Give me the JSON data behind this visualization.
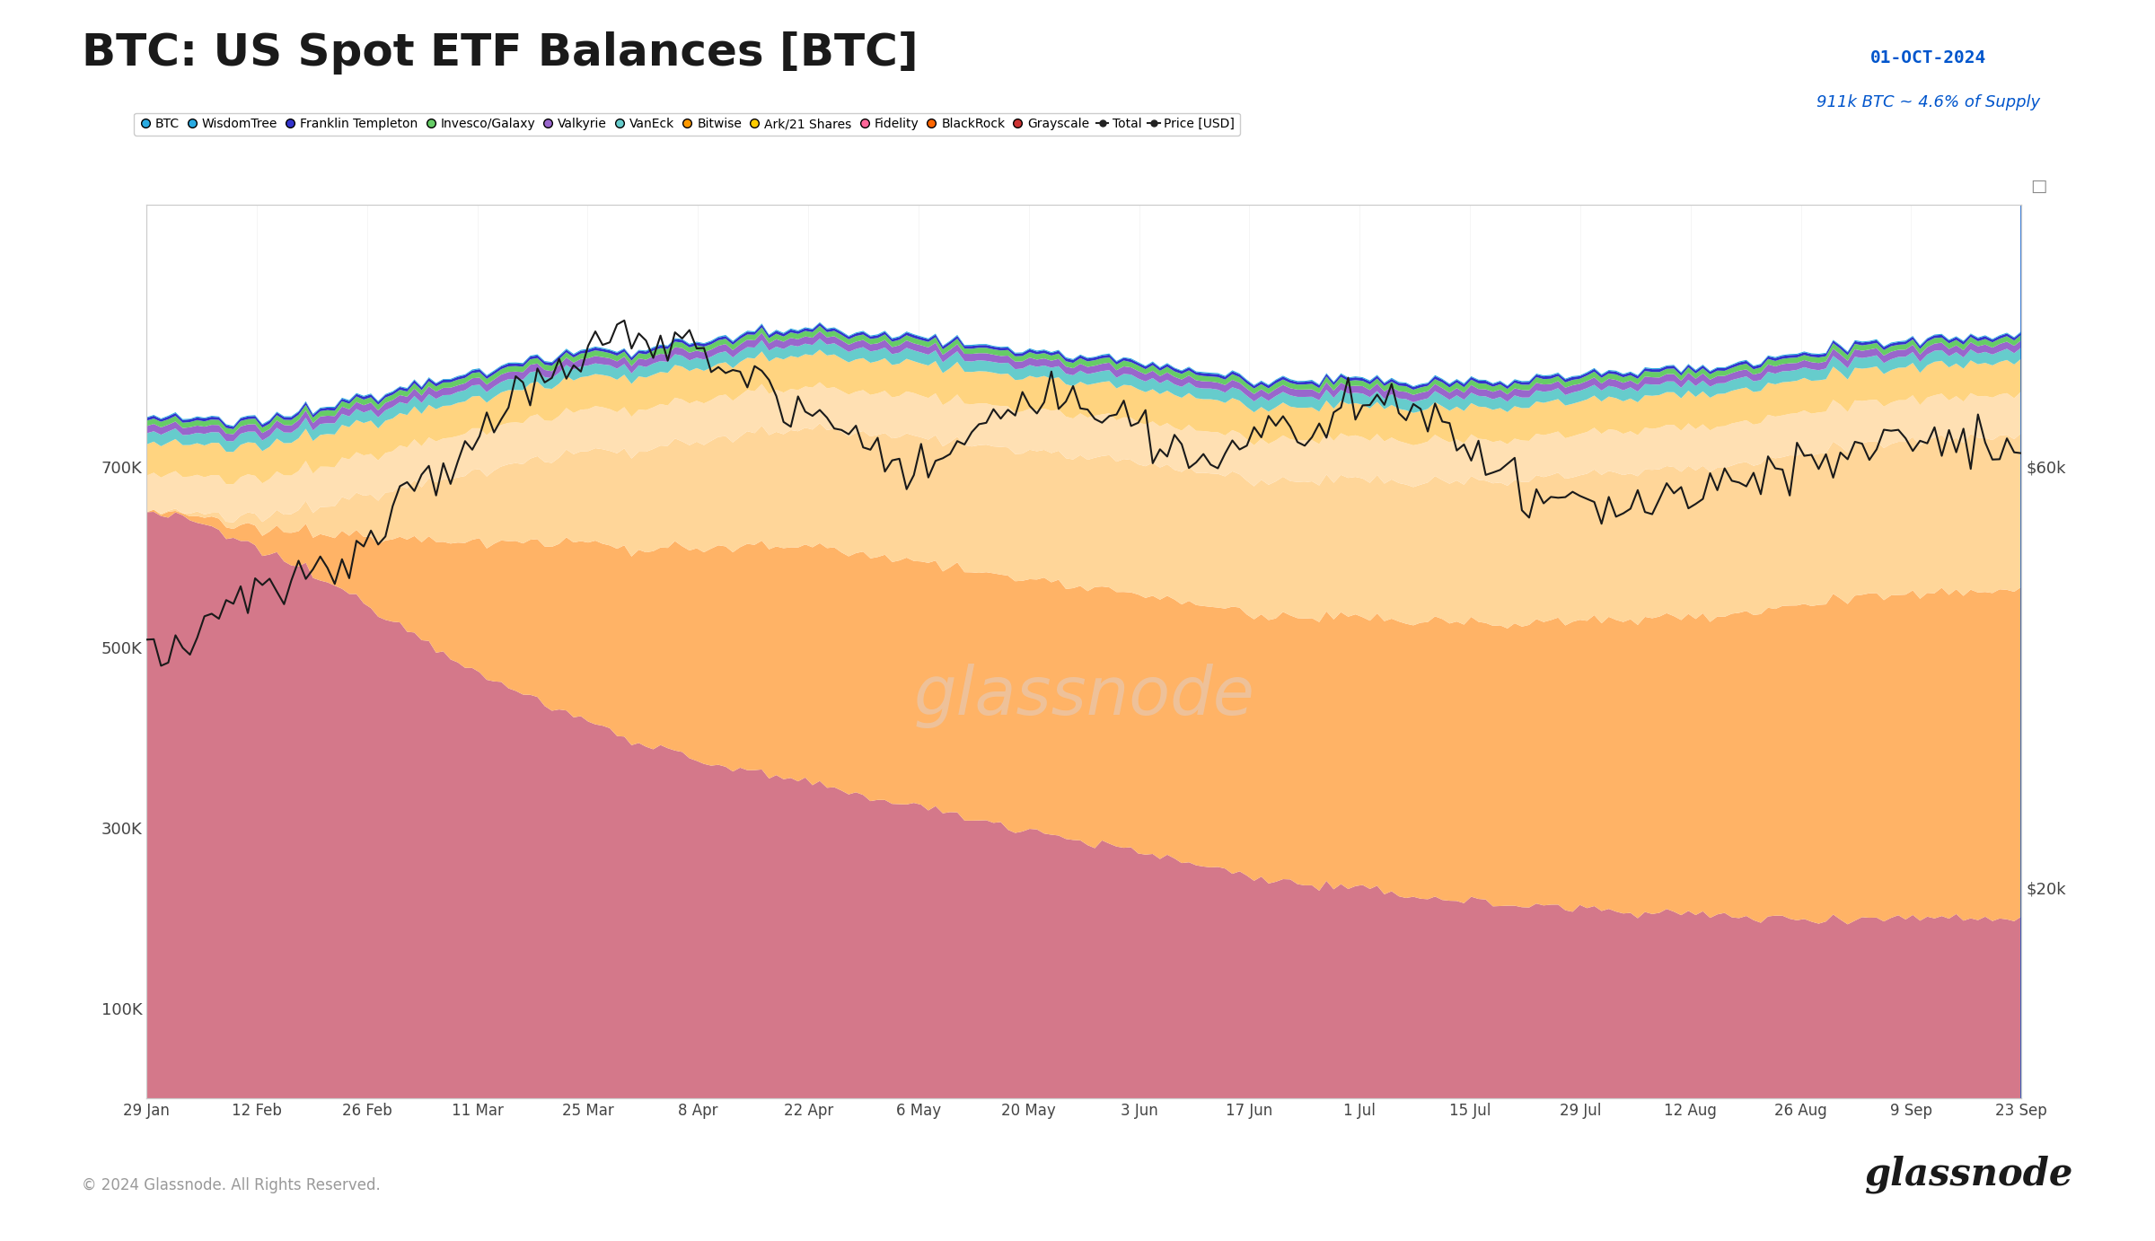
{
  "title": "BTC: US Spot ETF Balances [BTC]",
  "annotation_date": "01-OCT-2024",
  "annotation_text": "911k BTC ~ 4.6% of Supply",
  "footer_left": "© 2024 Glassnode. All Rights Reserved.",
  "footer_right": "glassnode",
  "background_color": "#ffffff",
  "plot_bg_color": "#ffffff",
  "legend_items": [
    "BTC",
    "WisdomTree",
    "Franklin Templeton",
    "Invesco/Galaxy",
    "Valkyrie",
    "VanEck",
    "Bitwise",
    "Ark/21 Shares",
    "Fidelity",
    "BlackRock",
    "Grayscale",
    "Total",
    "Price [USD]"
  ],
  "legend_dot_colors": [
    "#29abe2",
    "#29abe2",
    "#3333cc",
    "#66cc66",
    "#9966cc",
    "#66cccc",
    "#ff9900",
    "#ffcc00",
    "#ff6699",
    "#ff6600",
    "#cc3333",
    "#333333",
    "#333333"
  ],
  "ytick_labels_left": [
    "100K",
    "300K",
    "500K",
    "700K"
  ],
  "ytick_vals_left": [
    100000,
    300000,
    500000,
    700000
  ],
  "ytick_labels_right": [
    "$20k",
    "$60k"
  ],
  "ytick_vals_right": [
    20000,
    60000
  ],
  "xtick_labels": [
    "29 Jan",
    "12 Feb",
    "26 Feb",
    "11 Mar",
    "25 Mar",
    "8 Apr",
    "22 Apr",
    "6 May",
    "20 May",
    "3 Jun",
    "17 Jun",
    "1 Jul",
    "15 Jul",
    "29 Jul",
    "12 Aug",
    "26 Aug",
    "9 Sep",
    "23 Sep"
  ],
  "n_points": 260,
  "grayscale_color": "#d4788a",
  "blackrock_color": "#ffb366",
  "fidelity_color": "#ffd699",
  "ark_color": "#ffe0b3",
  "bitwise_color": "#ffd480",
  "vaneck_color": "#66cccc",
  "valkyrie_color": "#9966cc",
  "invesco_color": "#66cc66",
  "franklin_color": "#3333cc",
  "wisdomtree_color": "#29abe2",
  "price_color": "#1a1a1a",
  "watermark": "glassnode",
  "watermark_color": "#e8c8b0"
}
